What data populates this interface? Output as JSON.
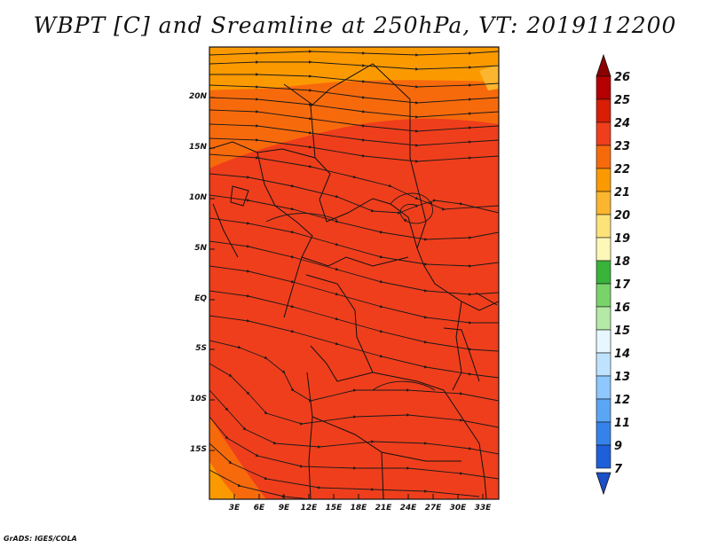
{
  "title": "WBPT [C] and Sreamline at 250hPa, VT: 2019112200",
  "credit": "GrADS: IGES/COLA",
  "map": {
    "lat_ticks": [
      "20N",
      "15N",
      "10N",
      "5N",
      "EQ",
      "5S",
      "10S",
      "15S"
    ],
    "lon_ticks": [
      "3E",
      "6E",
      "9E",
      "12E",
      "15E",
      "18E",
      "21E",
      "24E",
      "27E",
      "30E",
      "33E"
    ]
  },
  "colorbar": {
    "levels": [
      "26",
      "25",
      "24",
      "23",
      "22",
      "21",
      "20",
      "19",
      "18",
      "17",
      "16",
      "15",
      "14",
      "13",
      "12",
      "11",
      "9",
      "7"
    ],
    "colors": [
      "#8b0000",
      "#b40000",
      "#d81e05",
      "#ef3e1c",
      "#f76a0c",
      "#fb9a00",
      "#fcb52e",
      "#fde27a",
      "#fdf7b8",
      "#39b33a",
      "#79d36a",
      "#b4e9a6",
      "#e6f7ff",
      "#bfe3ff",
      "#8ec8ff",
      "#5aa6f5",
      "#3583ea",
      "#1f5fd8",
      "#1b4fc7"
    ]
  }
}
